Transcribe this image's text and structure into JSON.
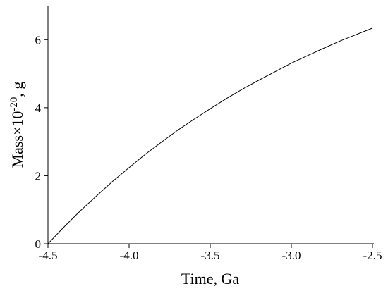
{
  "chart_data": {
    "type": "line",
    "x_label": "Time, Ga",
    "y_label": {
      "text": "Mass×10",
      "exponent": "-20",
      "suffix": ", g"
    },
    "x": [
      -4.5,
      -4.4,
      -4.3,
      -4.2,
      -4.1,
      -4.0,
      -3.9,
      -3.8,
      -3.7,
      -3.6,
      -3.5,
      -3.4,
      -3.3,
      -3.2,
      -3.1,
      -3.0,
      -2.9,
      -2.8,
      -2.7,
      -2.6,
      -2.5
    ],
    "series": [
      {
        "color": "#000000",
        "values": [
          0,
          0.5,
          0.97,
          1.41,
          1.84,
          2.24,
          2.63,
          2.99,
          3.34,
          3.66,
          3.97,
          4.27,
          4.55,
          4.81,
          5.06,
          5.31,
          5.53,
          5.75,
          5.96,
          6.15,
          6.34
        ]
      }
    ],
    "xlim": [
      -4.5,
      -2.5
    ],
    "xticks": [
      -4.5,
      {
        "value": -4.0,
        "label": "-4.0"
      },
      -3.5,
      {
        "value": -3.0,
        "label": "-3.0"
      },
      -2.5
    ],
    "ylim": [
      0,
      7
    ],
    "yticks": [
      0,
      2,
      4,
      6
    ]
  }
}
